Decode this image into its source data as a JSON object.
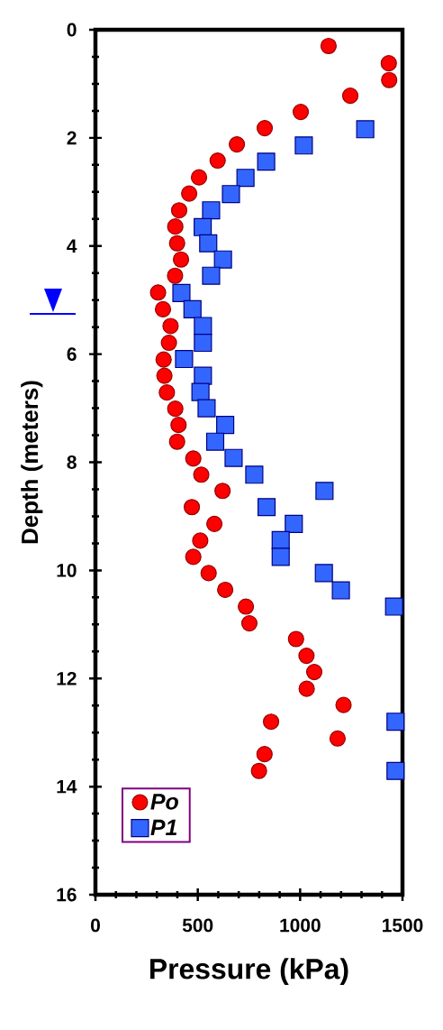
{
  "chart_data": {
    "type": "scatter",
    "xlabel": "Pressure (kPa)",
    "ylabel": "Depth (meters)",
    "xlim": [
      0,
      1500
    ],
    "xticks": [
      0,
      500,
      1000,
      1500
    ],
    "ylim": [
      16,
      0
    ],
    "yticks": [
      0,
      2,
      4,
      6,
      8,
      10,
      12,
      14,
      16
    ],
    "grid": false,
    "legend": "bottom left",
    "series": [
      {
        "name": "Po",
        "color": "#ff0000",
        "marker": "circle",
        "x": [
          1139,
          1433,
          1435,
          1245,
          1003,
          827,
          691,
          597,
          506,
          458,
          409,
          390,
          399,
          418,
          389,
          306,
          330,
          367,
          359,
          333,
          337,
          349,
          390,
          406,
          399,
          478,
          517,
          621,
          471,
          581,
          512,
          478,
          553,
          634,
          735,
          752,
          980,
          1031,
          1069,
          1032,
          1212,
          858,
          1183,
          826,
          799
        ],
        "values": [
          0.3,
          0.62,
          0.93,
          1.22,
          1.52,
          1.82,
          2.12,
          2.42,
          2.73,
          3.03,
          3.34,
          3.64,
          3.95,
          4.25,
          4.55,
          4.86,
          5.17,
          5.48,
          5.79,
          6.1,
          6.4,
          6.71,
          7.01,
          7.31,
          7.62,
          7.93,
          8.23,
          8.53,
          8.83,
          9.14,
          9.45,
          9.75,
          10.05,
          10.36,
          10.67,
          10.98,
          11.27,
          11.58,
          11.88,
          12.19,
          12.49,
          12.8,
          13.11,
          13.4,
          13.71
        ]
      },
      {
        "name": "P1",
        "color": "#3366ff",
        "marker": "square",
        "x": [
          1318,
          1018,
          834,
          733,
          662,
          565,
          524,
          551,
          623,
          565,
          420,
          474,
          525,
          525,
          433,
          525,
          513,
          543,
          634,
          585,
          675,
          776,
          1119,
          836,
          969,
          905,
          905,
          1116,
          1199,
          1459,
          1466,
          1466
        ],
        "values": [
          1.84,
          2.14,
          2.44,
          2.74,
          3.04,
          3.34,
          3.65,
          3.95,
          4.25,
          4.55,
          4.87,
          5.17,
          5.48,
          5.79,
          6.09,
          6.4,
          6.7,
          7.0,
          7.31,
          7.62,
          7.92,
          8.23,
          8.53,
          8.83,
          9.14,
          9.44,
          9.75,
          10.05,
          10.37,
          10.67,
          12.8,
          13.71
        ]
      }
    ]
  }
}
